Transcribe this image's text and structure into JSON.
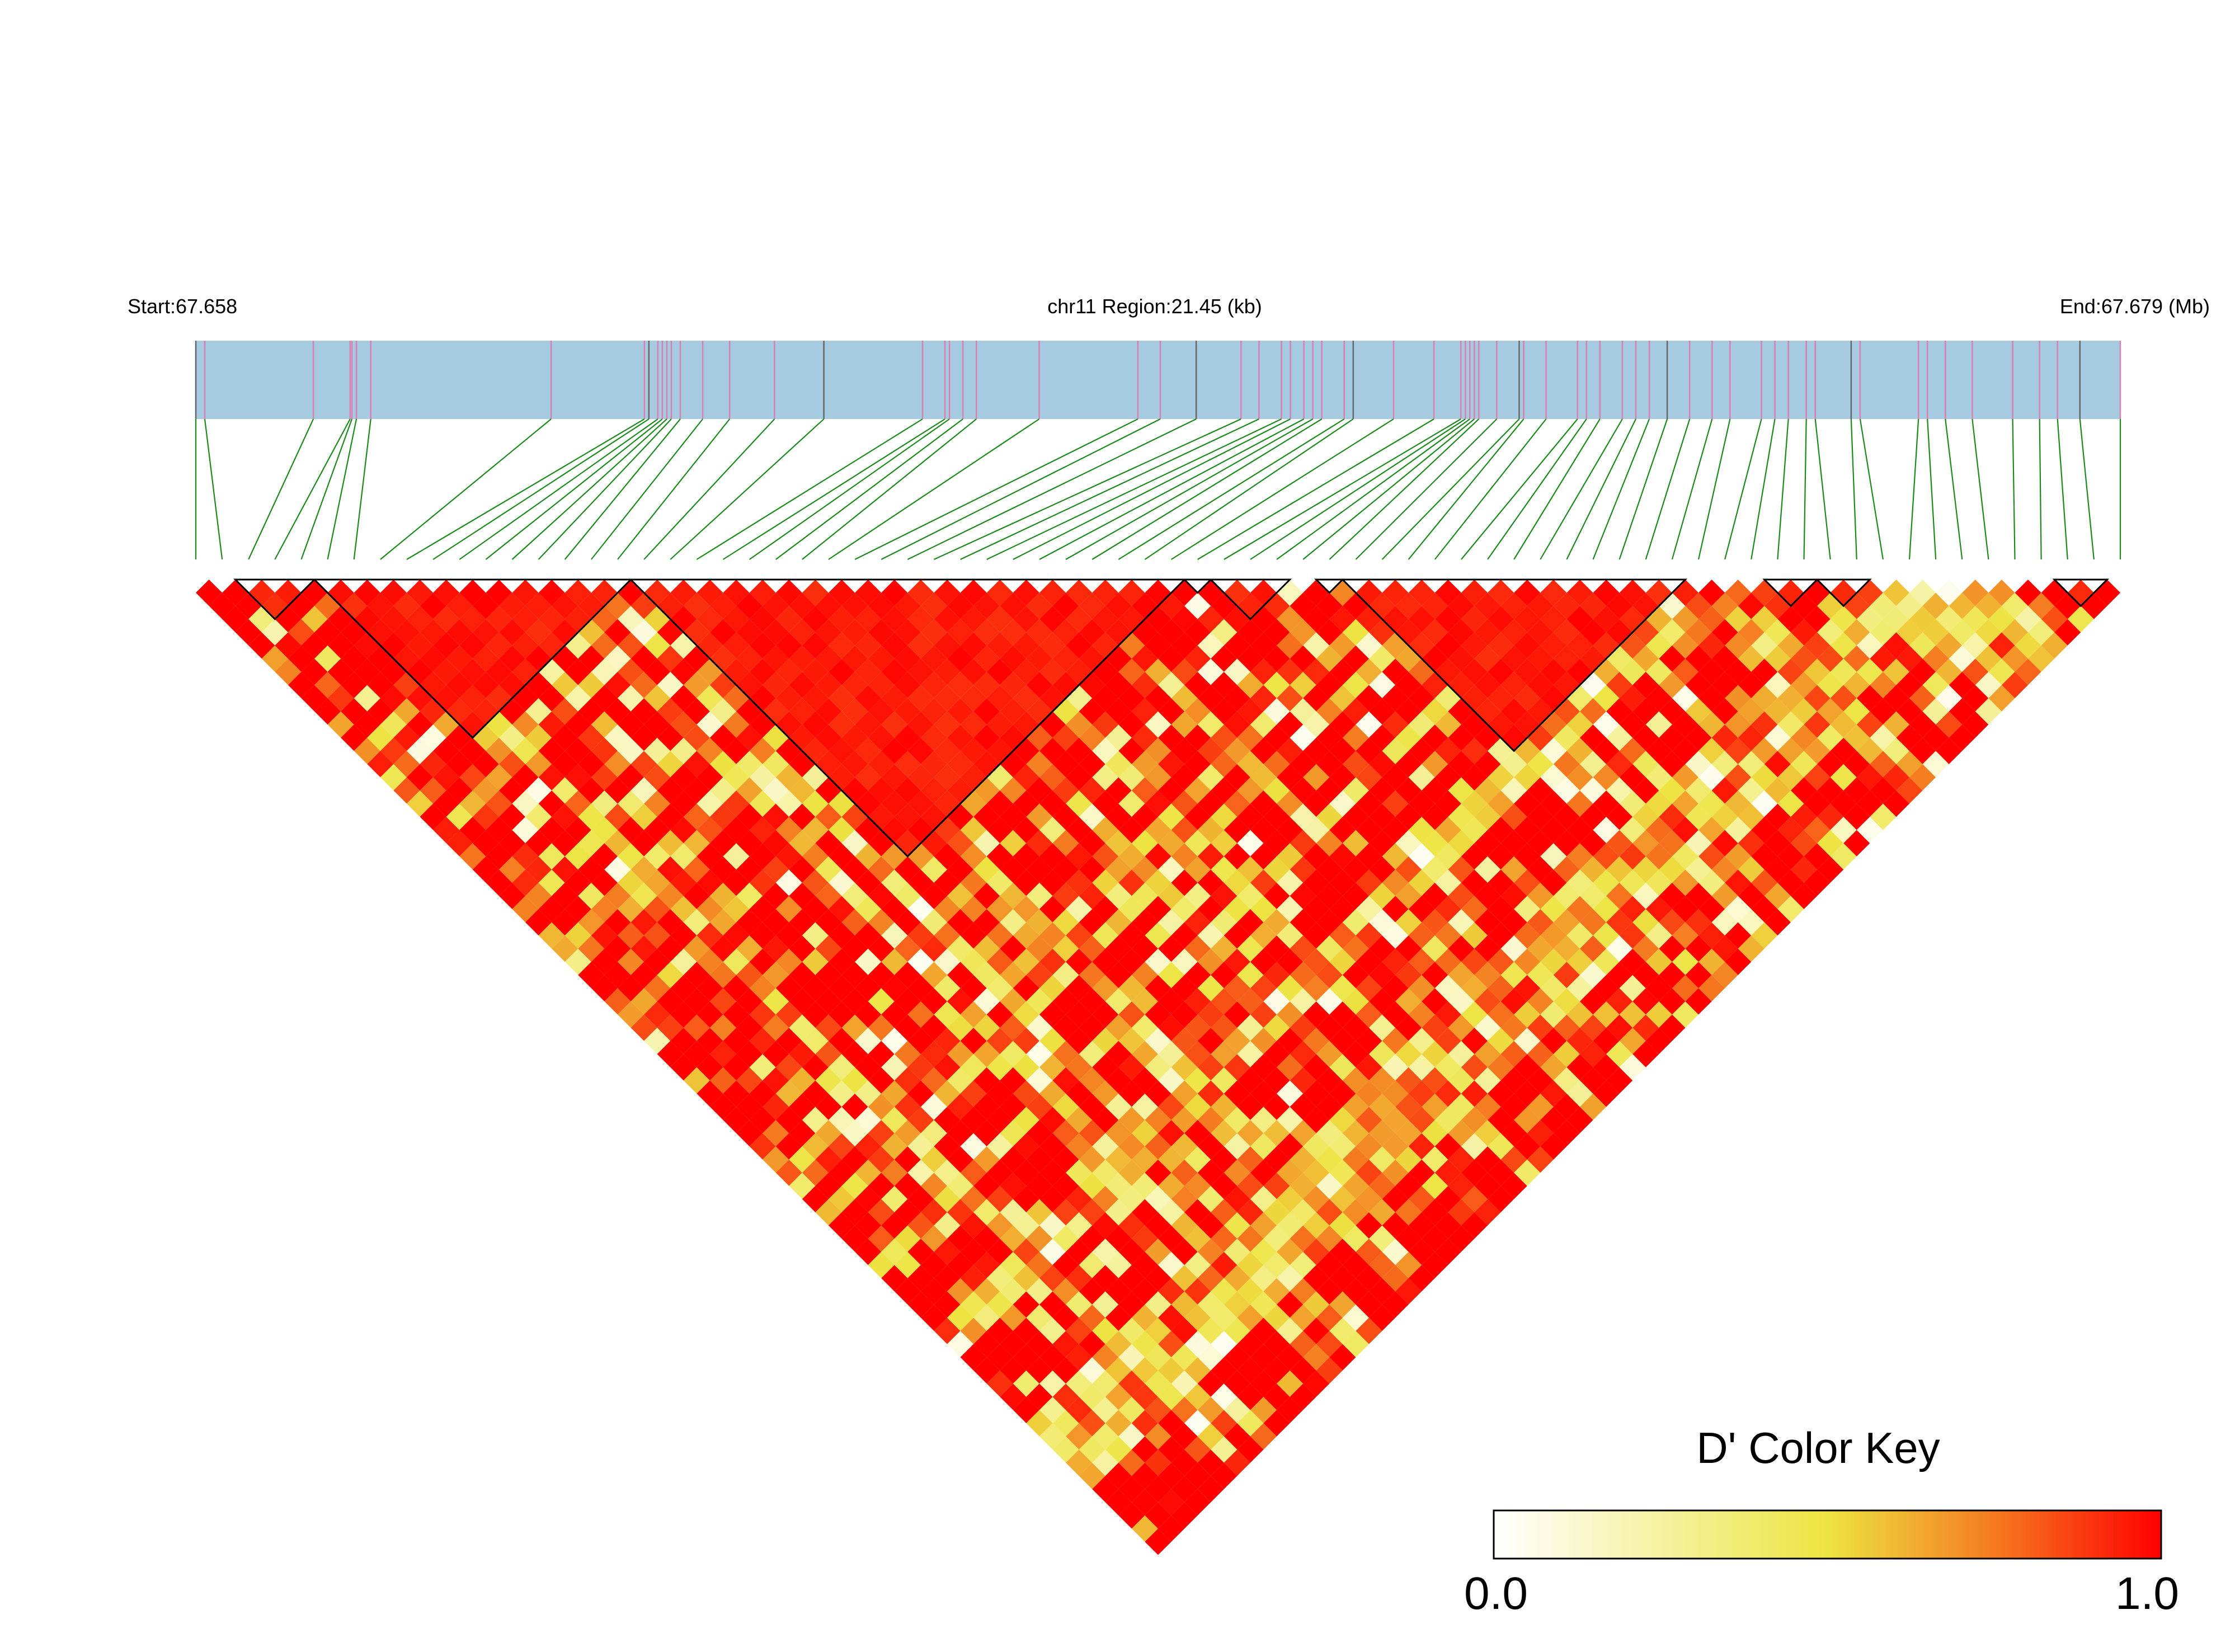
{
  "chart_data": {
    "type": "heatmap",
    "subtype": "linkage-disequilibrium-triangle",
    "header": {
      "start_label": "Start:67.658",
      "region_label": "chr11 Region:21.45 (kb)",
      "end_label": "End:67.679 (Mb)"
    },
    "region": {
      "chrom": "chr11",
      "start_mb": 67.658,
      "end_mb": 67.679,
      "length_kb": 21.45
    },
    "snp_count": 74,
    "snp_positions_kb": [
      0.0,
      0.1,
      1.31,
      1.72,
      1.74,
      1.79,
      1.95,
      3.96,
      5.0,
      5.05,
      5.15,
      5.2,
      5.25,
      5.3,
      5.4,
      5.65,
      5.95,
      6.45,
      7.0,
      8.1,
      8.35,
      8.4,
      8.55,
      8.7,
      9.4,
      10.5,
      10.75,
      11.15,
      11.65,
      11.85,
      12.1,
      12.2,
      12.35,
      12.45,
      12.55,
      12.8,
      12.9,
      13.35,
      13.8,
      14.1,
      14.15,
      14.2,
      14.25,
      14.3,
      14.5,
      14.75,
      14.8,
      15.05,
      15.4,
      15.5,
      15.65,
      15.9,
      16.05,
      16.2,
      16.4,
      16.65,
      16.9,
      17.1,
      17.45,
      17.6,
      17.75,
      17.95,
      18.05,
      18.45,
      18.55,
      19.2,
      19.3,
      19.5,
      19.8,
      20.25,
      20.55,
      20.75,
      21.0,
      21.45
    ],
    "haplotype_blocks": [
      [
        2,
        4
      ],
      [
        5,
        16
      ],
      [
        17,
        37
      ],
      [
        38,
        38
      ],
      [
        39,
        41
      ],
      [
        43,
        43
      ],
      [
        44,
        56
      ],
      [
        60,
        61
      ],
      [
        62,
        63
      ],
      [
        71,
        72
      ]
    ],
    "metric": "D'",
    "color_scale": {
      "min": 0.0,
      "max": 1.0,
      "low_color": "#ffffff",
      "mid_color": "#ede442",
      "high_color": "#ff0000"
    },
    "legend": {
      "title": "D' Color Key",
      "min_label": "0.0",
      "max_label": "1.0"
    }
  },
  "colors": {
    "track_fill": "#a6cbe0",
    "connector": "#1a8a1a",
    "gene_tick": "#d97fb3",
    "block_outline": "#000000"
  }
}
